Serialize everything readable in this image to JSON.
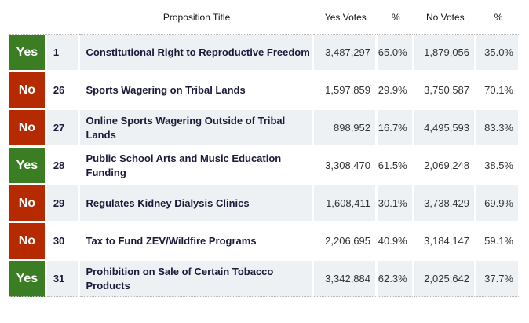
{
  "headers": {
    "title": "Proposition Title",
    "yes_votes": "Yes Votes",
    "yes_pct": "%",
    "no_votes": "No Votes",
    "no_pct": "%"
  },
  "colors": {
    "yes": "#3a7d23",
    "no": "#b52a00"
  },
  "rows": [
    {
      "result": "Yes",
      "num": "1",
      "title": "Constitutional Right to Reproductive Freedom",
      "yes_votes": "3,487,297",
      "yes_pct": "65.0%",
      "no_votes": "1,879,056",
      "no_pct": "35.0%"
    },
    {
      "result": "No",
      "num": "26",
      "title": "Sports Wagering on Tribal Lands",
      "yes_votes": "1,597,859",
      "yes_pct": "29.9%",
      "no_votes": "3,750,587",
      "no_pct": "70.1%"
    },
    {
      "result": "No",
      "num": "27",
      "title": "Online Sports Wagering Outside of Tribal Lands",
      "yes_votes": "898,952",
      "yes_pct": "16.7%",
      "no_votes": "4,495,593",
      "no_pct": "83.3%"
    },
    {
      "result": "Yes",
      "num": "28",
      "title": "Public School Arts and Music Education Funding",
      "yes_votes": "3,308,470",
      "yes_pct": "61.5%",
      "no_votes": "2,069,248",
      "no_pct": "38.5%"
    },
    {
      "result": "No",
      "num": "29",
      "title": "Regulates Kidney Dialysis Clinics",
      "yes_votes": "1,608,411",
      "yes_pct": "30.1%",
      "no_votes": "3,738,429",
      "no_pct": "69.9%"
    },
    {
      "result": "No",
      "num": "30",
      "title": "Tax to Fund ZEV/Wildfire Programs",
      "yes_votes": "2,206,695",
      "yes_pct": "40.9%",
      "no_votes": "3,184,147",
      "no_pct": "59.1%"
    },
    {
      "result": "Yes",
      "num": "31",
      "title": "Prohibition on Sale of Certain Tobacco Products",
      "yes_votes": "3,342,884",
      "yes_pct": "62.3%",
      "no_votes": "2,025,642",
      "no_pct": "37.7%"
    }
  ]
}
